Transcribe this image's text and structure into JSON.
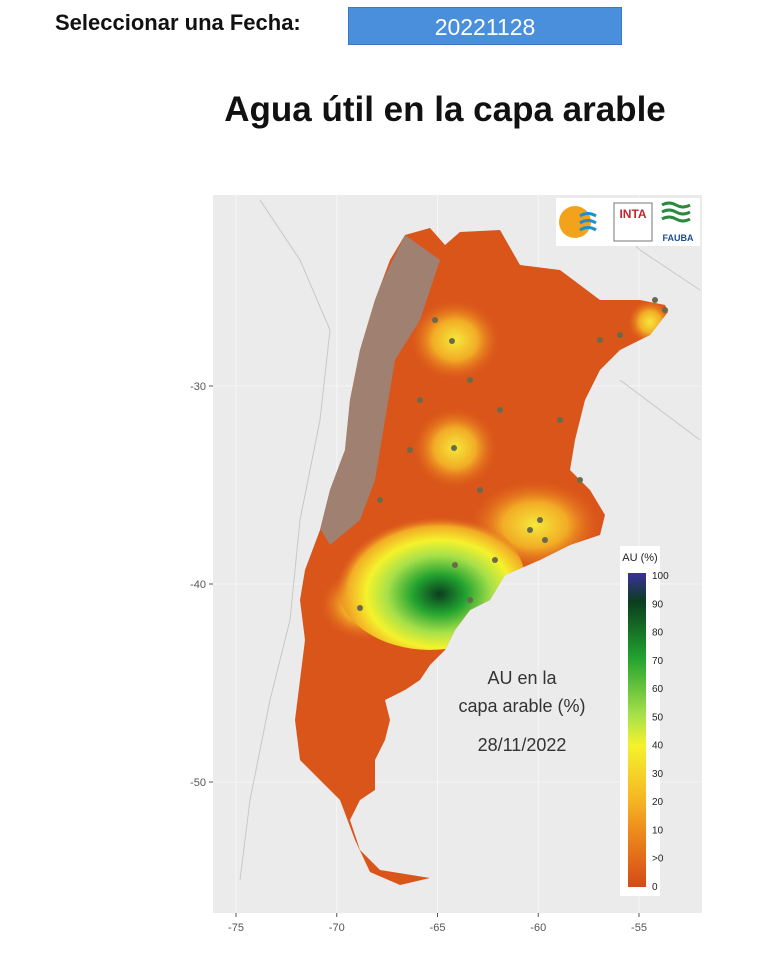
{
  "header": {
    "date_label": "Seleccionar una Fecha:",
    "date_value": "20221128"
  },
  "title": "Agua útil en la capa arable",
  "map": {
    "logos": [
      "INTA",
      "FAUBA"
    ],
    "x_axis_ticks": [
      -75,
      -70,
      -65,
      -60,
      -55
    ],
    "y_axis_ticks": [
      -30,
      -40,
      -50
    ],
    "legend": {
      "title": "AU (%)",
      "labels": [
        "100",
        "90",
        "80",
        "70",
        "60",
        "50",
        "40",
        "30",
        "20",
        "10",
        ">0",
        "0"
      ]
    },
    "annotation": [
      "AU en la",
      "capa arable (%)",
      "28/11/2022"
    ]
  }
}
